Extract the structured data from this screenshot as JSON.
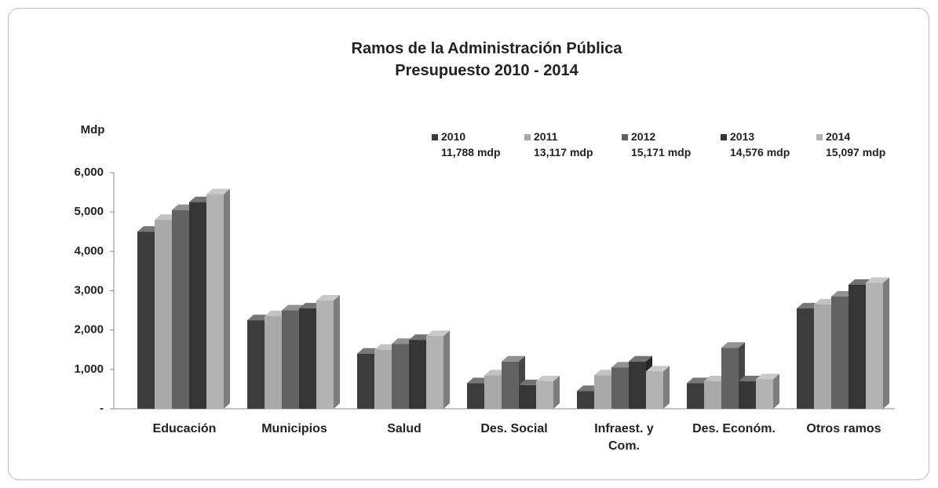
{
  "chart_data": {
    "type": "bar3d",
    "title": "Ramos de la Administración Pública\nPresupuesto 2010 - 2014",
    "y_label": "Mdp",
    "categories": [
      "Educación",
      "Municipios",
      "Salud",
      "Des. Social",
      "Infraest. y\nCom.",
      "Des. Económ.",
      "Otros ramos"
    ],
    "series": [
      {
        "name": "2010",
        "total": "11,788 mdp",
        "color": "#3c3c3c",
        "values": [
          4500,
          2250,
          1400,
          650,
          450,
          650,
          2550
        ]
      },
      {
        "name": "2011",
        "total": "13,117 mdp",
        "color": "#a9a9a9",
        "values": [
          4800,
          2350,
          1500,
          850,
          850,
          700,
          2650
        ]
      },
      {
        "name": "2012",
        "total": "15,171 mdp",
        "color": "#626262",
        "values": [
          5050,
          2500,
          1650,
          1200,
          1050,
          1550,
          2850
        ]
      },
      {
        "name": "2013",
        "total": "14,576 mdp",
        "color": "#363636",
        "values": [
          5250,
          2550,
          1750,
          600,
          1200,
          700,
          3150
        ]
      },
      {
        "name": "2014",
        "total": "15,097 mdp",
        "color": "#b2b2b2",
        "values": [
          5450,
          2750,
          1850,
          700,
          950,
          750,
          3200
        ]
      }
    ],
    "ylim": [
      0,
      6000
    ],
    "yticks": [
      {
        "value": 0,
        "label": "-"
      },
      {
        "value": 1000,
        "label": "1,000"
      },
      {
        "value": 2000,
        "label": "2,000"
      },
      {
        "value": 3000,
        "label": "3,000"
      },
      {
        "value": 4000,
        "label": "4,000"
      },
      {
        "value": 5000,
        "label": "5,000"
      },
      {
        "value": 6000,
        "label": "6,000"
      }
    ],
    "grid": false
  }
}
